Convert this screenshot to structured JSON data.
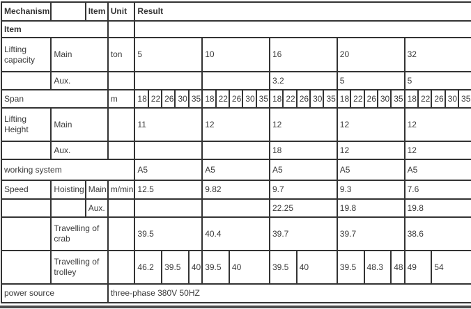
{
  "colors": {
    "border": "#333333",
    "text": "#3a3a3a",
    "header_text": "#333333",
    "bottom_bar": "#4d4d4d",
    "background": "#ffffff"
  },
  "table": {
    "rows": [
      {
        "cells": [
          {
            "t": "Mechanism",
            "b": true
          },
          {
            "t": "",
            "b": true
          },
          {
            "t": "Item",
            "b": true
          },
          {
            "t": "Unit",
            "b": true
          },
          {
            "t": "Result",
            "c": 25,
            "b": true
          }
        ]
      },
      {
        "cells": [
          {
            "t": "Item",
            "c": 3,
            "b": true
          },
          {
            "t": ""
          },
          {
            "t": "",
            "c": 25
          }
        ]
      },
      {
        "cells": [
          {
            "t": "Lifting capacity"
          },
          {
            "t": "Main",
            "c": 2
          },
          {
            "t": "ton"
          },
          {
            "t": "5",
            "c": 5
          },
          {
            "t": "10",
            "c": 5
          },
          {
            "t": "16",
            "c": 5
          },
          {
            "t": "20",
            "c": 5
          },
          {
            "t": "32",
            "c": 5
          }
        ]
      },
      {
        "cells": [
          {
            "t": ""
          },
          {
            "t": "Aux.",
            "c": 2
          },
          {
            "t": ""
          },
          {
            "t": "",
            "c": 5
          },
          {
            "t": "",
            "c": 5
          },
          {
            "t": "3.2",
            "c": 5
          },
          {
            "t": "5",
            "c": 5
          },
          {
            "t": "5",
            "c": 5
          }
        ]
      },
      {
        "cells": [
          {
            "t": "Span",
            "c": 3
          },
          {
            "t": "m"
          },
          {
            "t": "18"
          },
          {
            "t": "22"
          },
          {
            "t": "26"
          },
          {
            "t": "30"
          },
          {
            "t": "35"
          },
          {
            "t": "18"
          },
          {
            "t": "22"
          },
          {
            "t": "26"
          },
          {
            "t": "30"
          },
          {
            "t": "35"
          },
          {
            "t": "18"
          },
          {
            "t": "22"
          },
          {
            "t": "26"
          },
          {
            "t": "30"
          },
          {
            "t": "35"
          },
          {
            "t": "18"
          },
          {
            "t": "22"
          },
          {
            "t": "26"
          },
          {
            "t": "30"
          },
          {
            "t": "35"
          },
          {
            "t": "18"
          },
          {
            "t": "22"
          },
          {
            "t": "26"
          },
          {
            "t": "30"
          },
          {
            "t": "35"
          }
        ]
      },
      {
        "cells": [
          {
            "t": "Lifting Height"
          },
          {
            "t": "Main",
            "c": 2
          },
          {
            "t": ""
          },
          {
            "t": "11",
            "c": 5
          },
          {
            "t": "12",
            "c": 5
          },
          {
            "t": "12",
            "c": 5
          },
          {
            "t": "12",
            "c": 5
          },
          {
            "t": "12",
            "c": 5
          }
        ]
      },
      {
        "cells": [
          {
            "t": ""
          },
          {
            "t": "Aux.",
            "c": 2
          },
          {
            "t": ""
          },
          {
            "t": "",
            "c": 5
          },
          {
            "t": "",
            "c": 5
          },
          {
            "t": "18",
            "c": 5
          },
          {
            "t": "12",
            "c": 5
          },
          {
            "t": "12",
            "c": 5
          }
        ]
      },
      {
        "cells": [
          {
            "t": "working system",
            "c": 4
          },
          {
            "t": "A5",
            "c": 5
          },
          {
            "t": "A5",
            "c": 5
          },
          {
            "t": "A5",
            "c": 5
          },
          {
            "t": "A5",
            "c": 5
          },
          {
            "t": "A5",
            "c": 5
          }
        ]
      },
      {
        "cells": [
          {
            "t": "Speed"
          },
          {
            "t": "Hoisting"
          },
          {
            "t": "Main"
          },
          {
            "t": "m/min"
          },
          {
            "t": "12.5",
            "c": 5
          },
          {
            "t": "9.82",
            "c": 5
          },
          {
            "t": "9.7",
            "c": 5
          },
          {
            "t": "9.3",
            "c": 5
          },
          {
            "t": "7.6",
            "c": 5
          }
        ]
      },
      {
        "cells": [
          {
            "t": ""
          },
          {
            "t": ""
          },
          {
            "t": "Aux."
          },
          {
            "t": ""
          },
          {
            "t": "",
            "c": 5
          },
          {
            "t": "",
            "c": 5
          },
          {
            "t": "22.25",
            "c": 5
          },
          {
            "t": "19.8",
            "c": 5
          },
          {
            "t": "19.8",
            "c": 5
          }
        ]
      },
      {
        "cells": [
          {
            "t": ""
          },
          {
            "t": "Travelling of crab",
            "c": 2
          },
          {
            "t": ""
          },
          {
            "t": "39.5",
            "c": 5
          },
          {
            "t": "40.4",
            "c": 5
          },
          {
            "t": "39.7",
            "c": 5
          },
          {
            "t": "39.7",
            "c": 5
          },
          {
            "t": "38.6",
            "c": 5
          }
        ]
      },
      {
        "cells": [
          {
            "t": ""
          },
          {
            "t": "Travelling of trolley",
            "c": 2
          },
          {
            "t": ""
          },
          {
            "t": "46.2",
            "c": 2
          },
          {
            "t": "39.5",
            "c": 2
          },
          {
            "t": "40"
          },
          {
            "t": "39.5",
            "c": 2
          },
          {
            "t": "40",
            "c": 3
          },
          {
            "t": "39.5",
            "c": 2
          },
          {
            "t": "40",
            "c": 3
          },
          {
            "t": "39.5",
            "c": 2
          },
          {
            "t": "48.3",
            "c": 2
          },
          {
            "t": "48"
          },
          {
            "t": "49",
            "c": 2
          },
          {
            "t": "54",
            "c": 3
          }
        ]
      },
      {
        "cells": [
          {
            "t": "power source",
            "c": 3
          },
          {
            "t": "three-phase 380V 50HZ",
            "c": 26
          }
        ]
      }
    ]
  }
}
